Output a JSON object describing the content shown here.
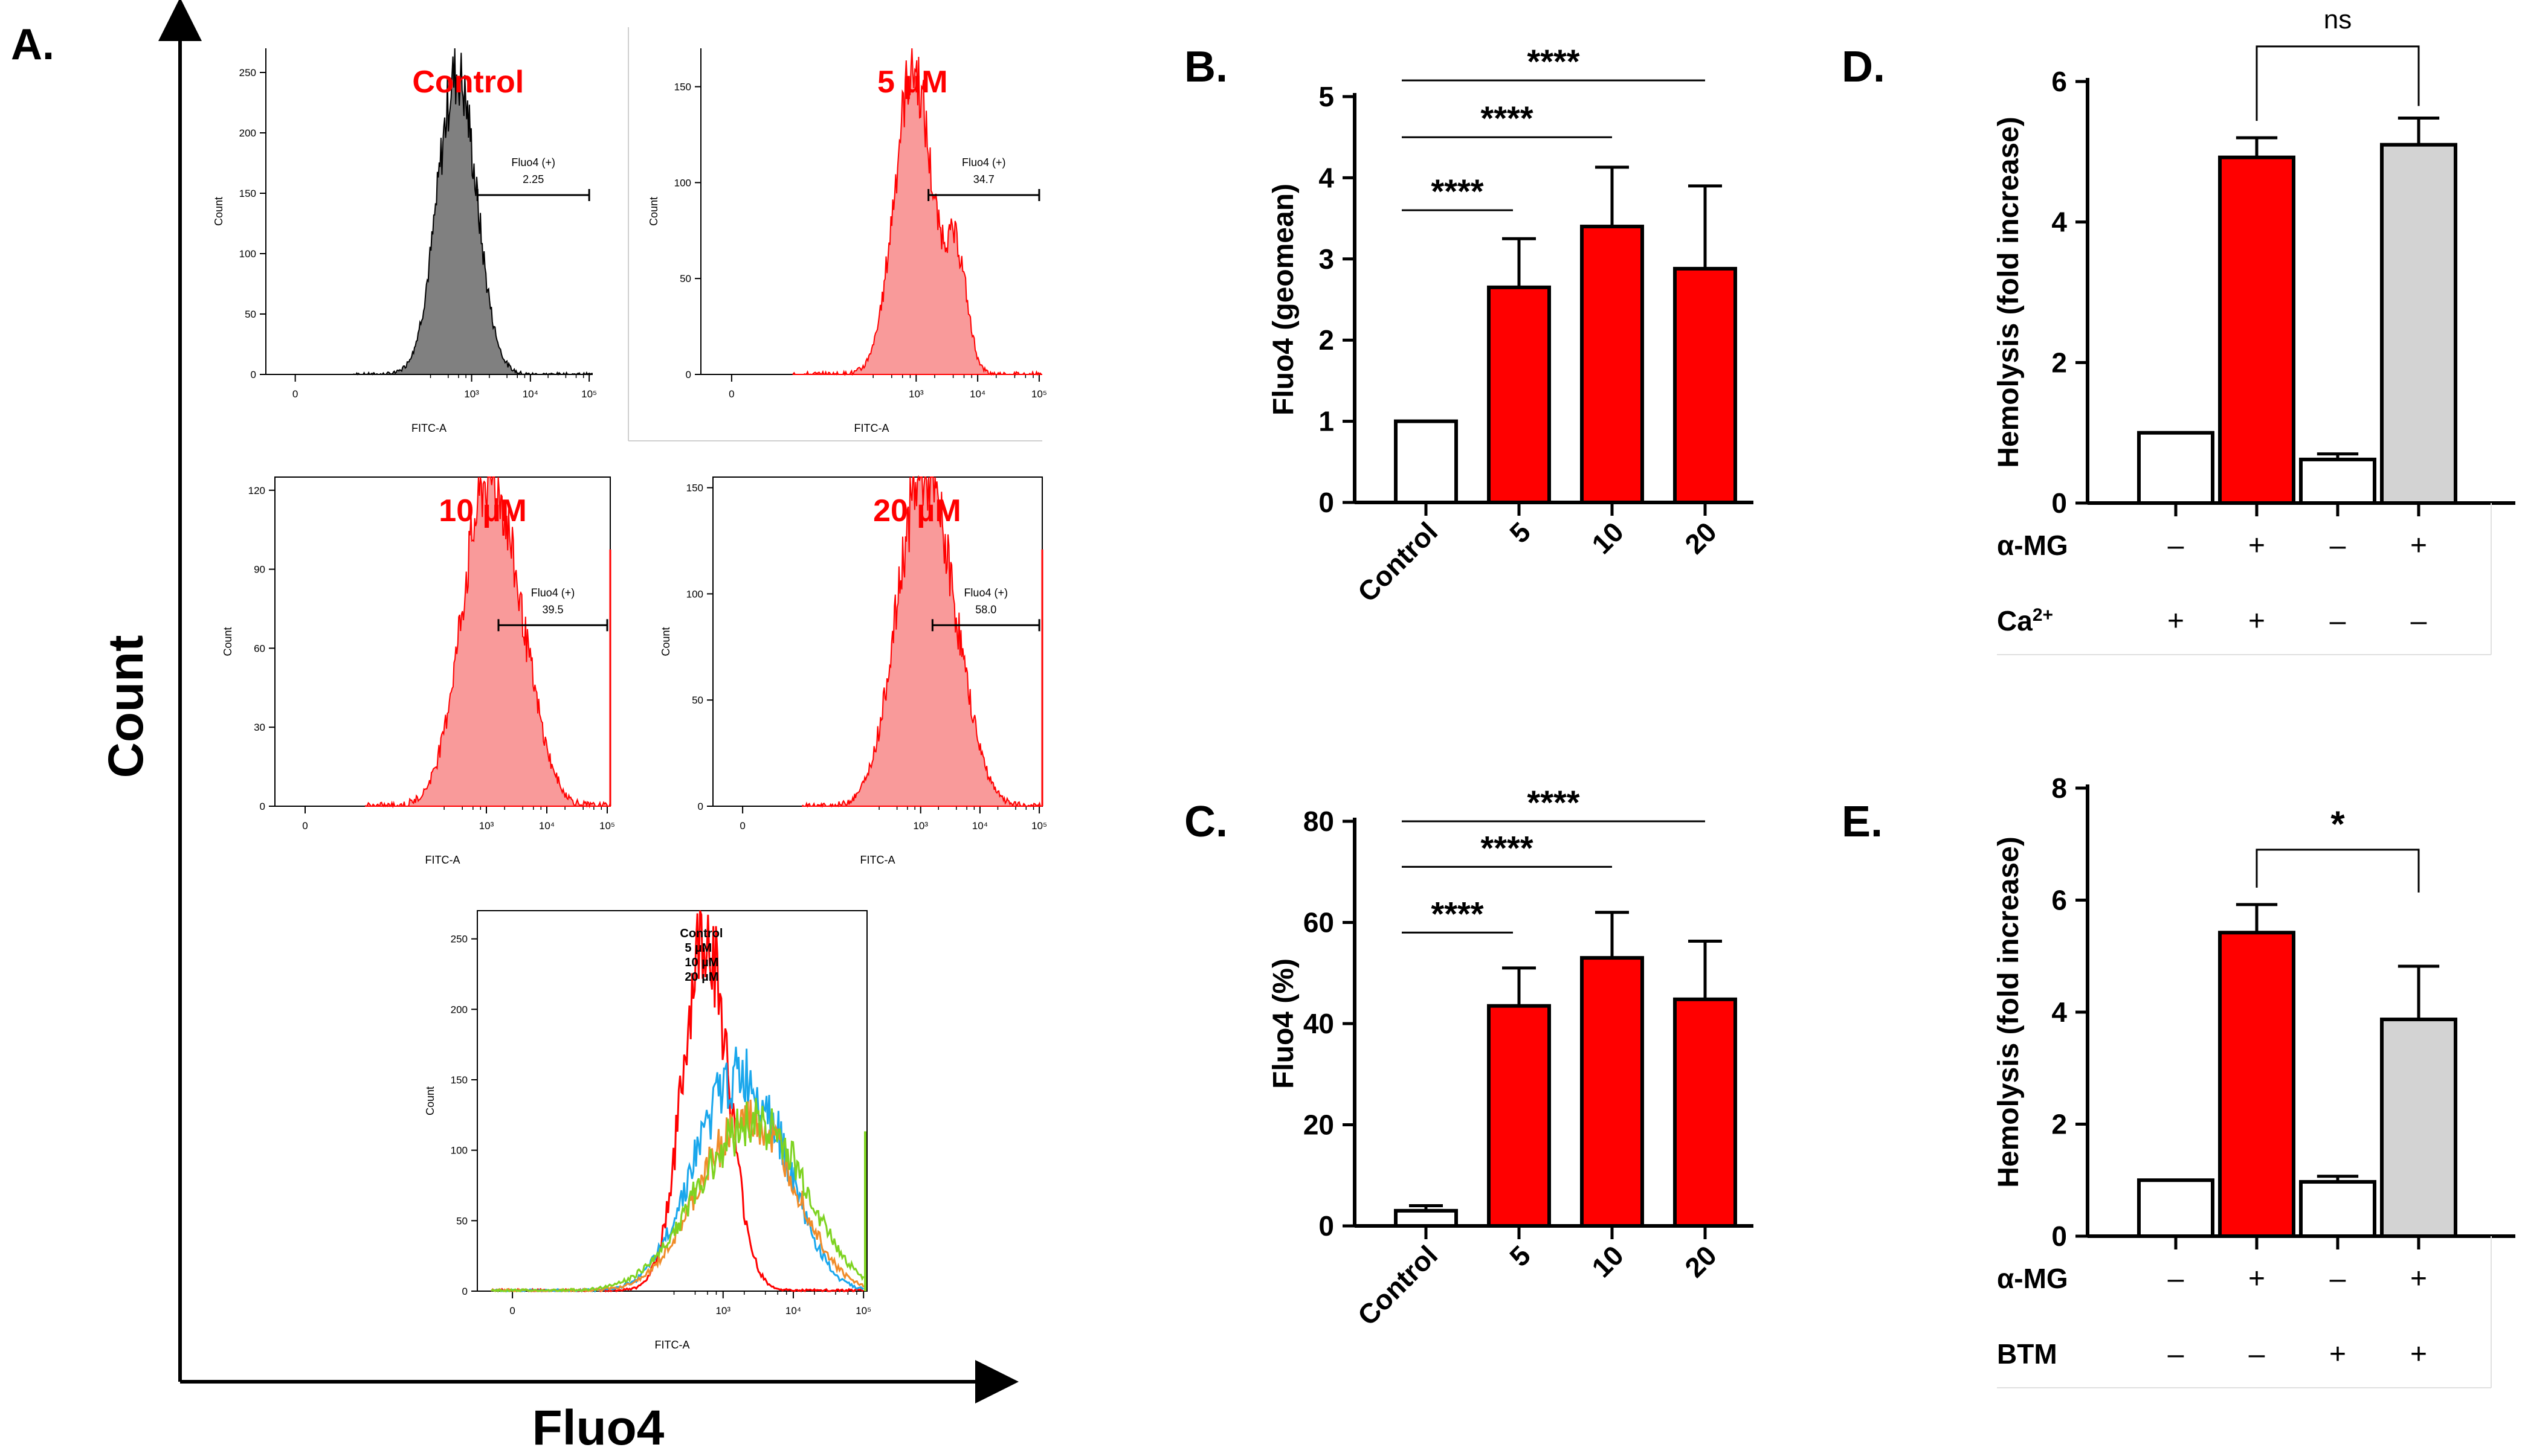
{
  "figure": {
    "panel_a_label": "A.",
    "panel_b_label": "B.",
    "panel_c_label": "C.",
    "panel_d_label": "D.",
    "panel_e_label": "E.",
    "outer_y_label": "Count",
    "outer_x_label": "Fluo4"
  },
  "colors": {
    "red": "#ff0000",
    "red_fill": "#f99a9a",
    "control_fill": "#808080",
    "grey_bar": "#d3d3d3",
    "black": "#000000",
    "cyan": "#1aa7ec",
    "orange": "#f08c2a",
    "green": "#7ed321"
  },
  "chart_data": [
    {
      "id": "A-control",
      "type": "histogram",
      "title": "Control",
      "xlabel": "FITC-A",
      "ylabel": "Count",
      "x_log": true,
      "yticks": [
        "0",
        "50",
        "100",
        "150",
        "200",
        "250"
      ],
      "ylim": [
        0,
        270
      ],
      "xticks": [
        "0",
        "10³",
        "10⁴",
        "10⁵"
      ],
      "xtick_values": [
        0,
        3,
        4,
        5
      ],
      "gate_label": "Fluo4 (+)",
      "gate_value": "2.25",
      "gate_range": [
        3.1,
        5.0
      ],
      "peak_log": 2.75,
      "peak_count": 250,
      "fill": "grey"
    },
    {
      "id": "A-5uM",
      "type": "histogram",
      "title": "5 µM",
      "xlabel": "FITC-A",
      "ylabel": "Count",
      "x_log": true,
      "yticks": [
        "0",
        "50",
        "100",
        "150"
      ],
      "ylim": [
        0,
        170
      ],
      "xticks": [
        "0",
        "10³",
        "10⁴",
        "10⁵"
      ],
      "xtick_values": [
        0,
        3,
        4,
        5
      ],
      "gate_label": "Fluo4 (+)",
      "gate_value": "34.7",
      "gate_range": [
        3.2,
        5.0
      ],
      "peak_log": 3.0,
      "peak_count": 160,
      "fill": "red"
    },
    {
      "id": "A-10uM",
      "type": "histogram",
      "title": "10 µM",
      "xlabel": "FITC-A",
      "ylabel": "Count",
      "x_log": true,
      "yticks": [
        "0",
        "30",
        "60",
        "90",
        "120"
      ],
      "ylim": [
        0,
        125
      ],
      "xticks": [
        "0",
        "10³",
        "10⁴",
        "10⁵"
      ],
      "xtick_values": [
        0,
        3,
        4,
        5
      ],
      "gate_label": "Fluo4 (+)",
      "gate_value": "39.5",
      "gate_range": [
        3.2,
        5.0
      ],
      "peak_log": 3.0,
      "peak_count": 118,
      "fill": "red"
    },
    {
      "id": "A-20uM",
      "type": "histogram",
      "title": "20 µM",
      "xlabel": "FITC-A",
      "ylabel": "Count",
      "x_log": true,
      "yticks": [
        "0",
        "50",
        "100",
        "150"
      ],
      "ylim": [
        0,
        155
      ],
      "xticks": [
        "0",
        "10³",
        "10⁴",
        "10⁵"
      ],
      "xtick_values": [
        0,
        3,
        4,
        5
      ],
      "gate_label": "Fluo4 (+)",
      "gate_value": "58.0",
      "gate_range": [
        3.2,
        5.0
      ],
      "peak_log": 3.0,
      "peak_count": 148,
      "fill": "red"
    },
    {
      "id": "A-overlay",
      "type": "histogram-overlay",
      "xlabel": "FITC-A",
      "ylabel": "Count",
      "x_log": true,
      "yticks": [
        "0",
        "50",
        "100",
        "150",
        "200",
        "250"
      ],
      "ylim": [
        0,
        270
      ],
      "xticks": [
        "0",
        "10³",
        "10⁴",
        "10⁵"
      ],
      "xtick_values": [
        0,
        3,
        4,
        5
      ],
      "legend": [
        "Control",
        "5 µM",
        "10 µM",
        "20 µM"
      ],
      "series": [
        {
          "peak_log": 2.75,
          "peak_count": 255,
          "width": 0.32,
          "color": "red"
        },
        {
          "peak_log": 3.05,
          "peak_count": 130,
          "width": 0.55,
          "color": "cyan"
        },
        {
          "peak_log": 3.15,
          "peak_count": 100,
          "width": 0.6,
          "color": "orange"
        },
        {
          "peak_log": 3.2,
          "peak_count": 95,
          "width": 0.7,
          "color": "green"
        }
      ]
    },
    {
      "id": "B",
      "type": "bar",
      "ylabel": "Fluo4 (geomean)",
      "categories": [
        "Control",
        "5",
        "10",
        "20"
      ],
      "values": [
        1.0,
        2.65,
        3.4,
        2.88
      ],
      "errors": [
        0,
        0.6,
        0.73,
        1.02
      ],
      "ylim": [
        0,
        5
      ],
      "yticks": [
        "0",
        "1",
        "2",
        "3",
        "4",
        "5"
      ],
      "bar_colors": [
        "white",
        "red",
        "red",
        "red"
      ],
      "significance": [
        {
          "from": 0,
          "to": 1,
          "label": "****"
        },
        {
          "from": 0,
          "to": 2,
          "label": "****"
        },
        {
          "from": 0,
          "to": 3,
          "label": "****"
        }
      ]
    },
    {
      "id": "C",
      "type": "bar",
      "ylabel": "Fluo4 (%)",
      "categories": [
        "Control",
        "5",
        "10",
        "20"
      ],
      "values": [
        3.0,
        43.5,
        53.0,
        44.8
      ],
      "errors": [
        1.0,
        7.5,
        9.0,
        11.5
      ],
      "ylim": [
        0,
        80
      ],
      "yticks": [
        "0",
        "20",
        "40",
        "60",
        "80"
      ],
      "bar_colors": [
        "white",
        "red",
        "red",
        "red"
      ],
      "significance": [
        {
          "from": 0,
          "to": 1,
          "label": "****"
        },
        {
          "from": 0,
          "to": 2,
          "label": "****"
        },
        {
          "from": 0,
          "to": 3,
          "label": "****"
        }
      ]
    },
    {
      "id": "D",
      "type": "bar",
      "ylabel": "Hemolysis (fold increase)",
      "values": [
        1.0,
        4.92,
        0.62,
        5.1
      ],
      "errors": [
        0,
        0.28,
        0.08,
        0.38
      ],
      "ylim": [
        0,
        6
      ],
      "yticks": [
        "0",
        "2",
        "4",
        "6"
      ],
      "bar_colors": [
        "white",
        "red",
        "white",
        "grey"
      ],
      "conditions": [
        {
          "label": "α-MG",
          "signs": [
            "–",
            "+",
            "–",
            "+"
          ]
        },
        {
          "label": "Ca",
          "sup": "2+",
          "signs": [
            "+",
            "+",
            "–",
            "–"
          ]
        }
      ],
      "significance": [
        {
          "from": 1,
          "to": 3,
          "label": "ns"
        }
      ]
    },
    {
      "id": "E",
      "type": "bar",
      "ylabel": "Hemolysis (fold increase)",
      "values": [
        1.0,
        5.42,
        0.97,
        3.87
      ],
      "errors": [
        0,
        0.5,
        0.1,
        0.95
      ],
      "ylim": [
        0,
        8
      ],
      "yticks": [
        "0",
        "2",
        "4",
        "6",
        "8"
      ],
      "bar_colors": [
        "white",
        "red",
        "white",
        "grey"
      ],
      "conditions": [
        {
          "label": "α-MG",
          "signs": [
            "–",
            "+",
            "–",
            "+"
          ]
        },
        {
          "label": "BTM",
          "signs": [
            "–",
            "–",
            "+",
            "+"
          ]
        }
      ],
      "significance": [
        {
          "from": 1,
          "to": 3,
          "label": "*"
        }
      ]
    }
  ]
}
